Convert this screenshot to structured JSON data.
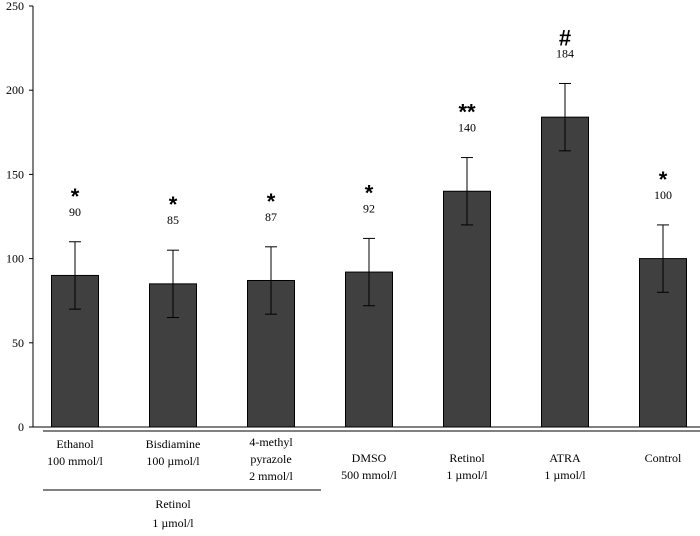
{
  "chart_data": {
    "type": "bar",
    "title": "",
    "xlabel": "",
    "ylabel": "",
    "ylim": [
      0,
      250
    ],
    "yticks": [
      0,
      50,
      100,
      150,
      200,
      250
    ],
    "bar_color": "#404040",
    "categories": [
      [
        "Ethanol",
        "100 mmol/l"
      ],
      [
        "Bisdiamine",
        "100 µmol/l"
      ],
      [
        "4-methyl",
        "pyrazole",
        "2 mmol/l"
      ],
      [
        "DMSO",
        "500 mmol/l"
      ],
      [
        "Retinol",
        "1 µmol/l"
      ],
      [
        "ATRA",
        "1 µmol/l"
      ],
      [
        "Control"
      ]
    ],
    "values": [
      90,
      85,
      87,
      92,
      140,
      184,
      100
    ],
    "value_labels": [
      "90",
      "85",
      "87",
      "92",
      "140",
      "184",
      "100"
    ],
    "error": [
      20,
      20,
      20,
      20,
      20,
      20,
      20
    ],
    "significance": [
      "*",
      "*",
      "*",
      "*",
      "**",
      "#",
      "*"
    ],
    "group": {
      "label": [
        "Retinol",
        "1 µmol/l"
      ],
      "spans": [
        0,
        2
      ]
    }
  }
}
